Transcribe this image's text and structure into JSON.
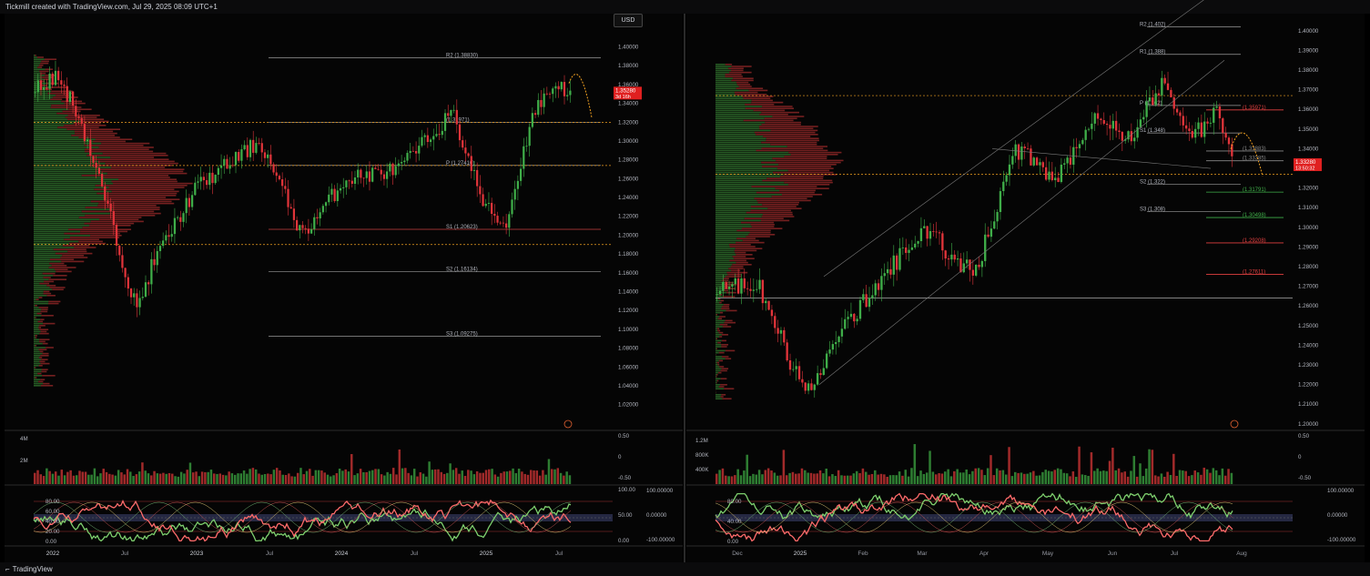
{
  "header": {
    "caption": "Tickmill created with TradingView.com, Jul 29, 2025 08:09 UTC+1"
  },
  "footer": {
    "brand": "TradingView"
  },
  "currency_button": "USD",
  "colors": {
    "up": "#3fae49",
    "down": "#e0343a",
    "pivot_line": "#9a9a9a",
    "dotted_orange": "#f0a020",
    "volume_up": "#2e7d32",
    "volume_down": "#a12a2a"
  },
  "chart_data": [
    {
      "type": "candlestick",
      "title": "",
      "price_scale": [
        "1.40000",
        "1.38000",
        "1.36000",
        "1.34000",
        "1.32000",
        "1.30000",
        "1.28000",
        "1.26000",
        "1.24000",
        "1.22000",
        "1.20000",
        "1.18000",
        "1.16000",
        "1.14000",
        "1.12000",
        "1.10000",
        "1.08000",
        "1.06000",
        "1.04000",
        "1.02000"
      ],
      "ylim": [
        1.01,
        1.415
      ],
      "time_labels": [
        "2022",
        "Jul",
        "2023",
        "Jul",
        "2024",
        "Jul",
        "2025",
        "Jul"
      ],
      "last_price": "1.35280",
      "countdown": "3d 16h",
      "pivot_levels": [
        {
          "label": "R2 (1.38830)",
          "value": 1.3883
        },
        {
          "label": "P (1.27410)",
          "value": 1.2741
        },
        {
          "label": "S1 (1.20623)",
          "value": 1.20623
        },
        {
          "label": "S2 (1.16134)",
          "value": 1.16134
        },
        {
          "label": "S3 (1.09275)",
          "value": 1.09275
        },
        {
          "label": "(1.31971)",
          "value": 1.31971
        }
      ],
      "volume_scale": [
        "4M",
        "2M"
      ],
      "oscillator_scale": [
        "80.00",
        "60.00",
        "40.00",
        "20.00",
        "0.00"
      ],
      "osc_right_scale": [
        "100.00000",
        "0.00000",
        "-100.00000"
      ],
      "osc_mid_scale": [
        "100.00",
        "50.00",
        "0.00"
      ],
      "vol_right_scale": [
        "0.50",
        "0",
        "-0.50"
      ]
    },
    {
      "type": "candlestick",
      "title": "",
      "price_scale": [
        "1.40000",
        "1.39000",
        "1.38000",
        "1.37000",
        "1.36000",
        "1.35000",
        "1.34000",
        "1.33000",
        "1.32000",
        "1.31000",
        "1.30000",
        "1.29000",
        "1.28000",
        "1.27000",
        "1.26000",
        "1.25000",
        "1.24000",
        "1.23000",
        "1.22000",
        "1.21000",
        "1.20000"
      ],
      "ylim": [
        1.199,
        1.405
      ],
      "time_labels": [
        "Dec",
        "2025",
        "Feb",
        "Mar",
        "Apr",
        "May",
        "Jun",
        "Jul",
        "Aug"
      ],
      "last_price": "1.33280",
      "countdown": "13:50:32",
      "pivot_levels": [
        {
          "label": "R2 (1.402)",
          "value": 1.402
        },
        {
          "label": "R1 (1.388)",
          "value": 1.388
        },
        {
          "label": "P (1.362)",
          "value": 1.362
        },
        {
          "label": "S1 (1.348)",
          "value": 1.348
        },
        {
          "label": "S2 (1.322)",
          "value": 1.322
        },
        {
          "label": "S3 (1.308)",
          "value": 1.308
        }
      ],
      "target_levels": [
        {
          "label": "(1.35971)",
          "value": 1.35971
        },
        {
          "label": "(1.33883)",
          "value": 1.33883
        },
        {
          "label": "(1.33385)",
          "value": 1.33385
        },
        {
          "label": "(1.31791)",
          "value": 1.31791
        },
        {
          "label": "(1.30498)",
          "value": 1.30498
        },
        {
          "label": "(1.29208)",
          "value": 1.29208
        },
        {
          "label": "(1.27611)",
          "value": 1.27611
        }
      ],
      "volume_scale": [
        "1.2M",
        "800K",
        "400K"
      ],
      "oscillator_scale": [
        "80.00",
        "40.00",
        "0.00"
      ],
      "osc_right_scale": [
        "100.00000",
        "0.00000",
        "-100.00000"
      ],
      "vol_right_scale": [
        "0.50",
        "0",
        "-0.50"
      ]
    }
  ]
}
